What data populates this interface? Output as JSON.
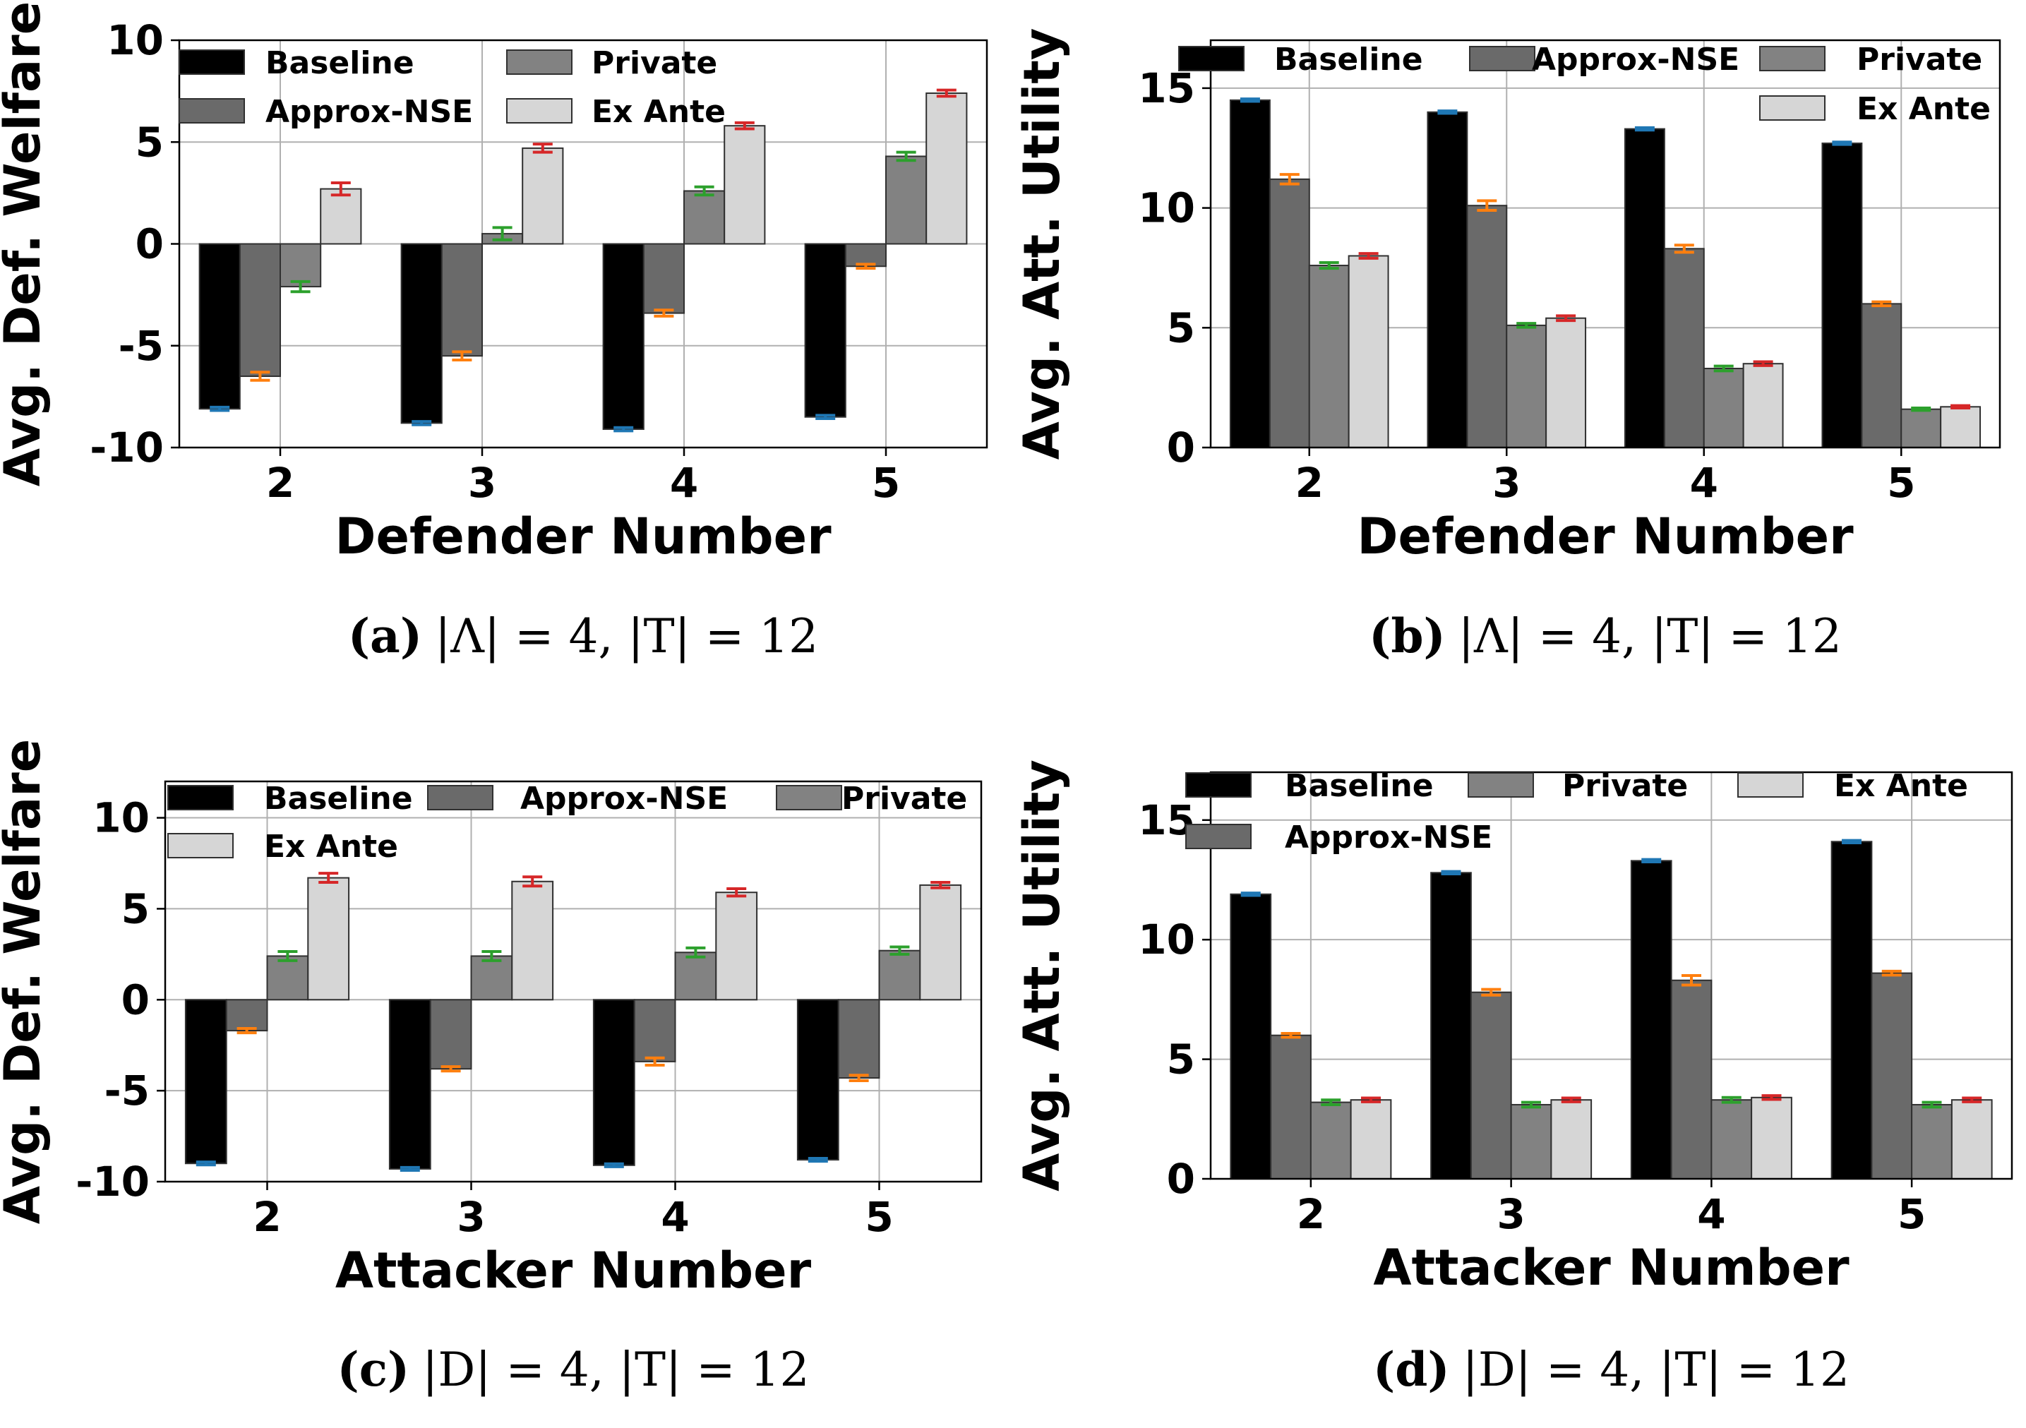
{
  "colors": {
    "baseline": "#000000",
    "approx_nse": "#6a6a6a",
    "private": "#828282",
    "ex_ante": "#d6d6d6",
    "err_baseline": "#1f77b4",
    "err_approx": "#ff7f0e",
    "err_private": "#2ca02c",
    "err_exante": "#d62728"
  },
  "chart_data": [
    {
      "id": "a",
      "type": "bar",
      "title": "",
      "caption": {
        "letter": "(a)",
        "text": "|Λ| = 4, |T| = 12"
      },
      "xlabel": "Defender Number",
      "ylabel": "Avg. Def. Welfare",
      "categories": [
        "2",
        "3",
        "4",
        "5"
      ],
      "ylim": [
        -10,
        10
      ],
      "yticks": [
        -10,
        -5,
        0,
        5,
        10
      ],
      "ytick_labels": [
        "-10",
        "-5",
        "0",
        "5",
        "10"
      ],
      "grid": true,
      "legend_placement": "top",
      "legend_columns": 2,
      "series": [
        {
          "name": "Baseline",
          "key": "baseline",
          "values": [
            -8.1,
            -8.8,
            -9.1,
            -8.5
          ],
          "err": [
            0.08,
            0.08,
            0.08,
            0.08
          ]
        },
        {
          "name": "Approx-NSE",
          "key": "approx_nse",
          "values": [
            -6.5,
            -5.5,
            -3.4,
            -1.1
          ],
          "err": [
            0.2,
            0.2,
            0.15,
            0.1
          ]
        },
        {
          "name": "Private",
          "key": "private",
          "values": [
            -2.1,
            0.5,
            2.6,
            4.3
          ],
          "err": [
            0.25,
            0.3,
            0.2,
            0.2
          ]
        },
        {
          "name": "Ex Ante",
          "key": "ex_ante",
          "values": [
            2.7,
            4.7,
            5.8,
            7.4
          ],
          "err": [
            0.3,
            0.2,
            0.15,
            0.15
          ]
        }
      ]
    },
    {
      "id": "b",
      "type": "bar",
      "title": "",
      "caption": {
        "letter": "(b)",
        "text": "|Λ| = 4, |T| = 12"
      },
      "xlabel": "Defender Number",
      "ylabel": "Avg. Att. Utility",
      "categories": [
        "2",
        "3",
        "4",
        "5"
      ],
      "ylim": [
        0,
        17
      ],
      "yticks": [
        0,
        5,
        10,
        15
      ],
      "ytick_labels": [
        "0",
        "5",
        "10",
        "15"
      ],
      "grid": true,
      "legend_placement": "top",
      "legend_columns": 3,
      "series": [
        {
          "name": "Baseline",
          "key": "baseline",
          "values": [
            14.5,
            14.0,
            13.3,
            12.7
          ],
          "err": [
            0.05,
            0.05,
            0.05,
            0.05
          ]
        },
        {
          "name": "Approx-NSE",
          "key": "approx_nse",
          "values": [
            11.2,
            10.1,
            8.3,
            6.0
          ],
          "err": [
            0.2,
            0.2,
            0.15,
            0.08
          ]
        },
        {
          "name": "Private",
          "key": "private",
          "values": [
            7.6,
            5.1,
            3.3,
            1.6
          ],
          "err": [
            0.12,
            0.08,
            0.1,
            0.05
          ]
        },
        {
          "name": "Ex Ante",
          "key": "ex_ante",
          "values": [
            8.0,
            5.4,
            3.5,
            1.7
          ],
          "err": [
            0.1,
            0.1,
            0.08,
            0.05
          ]
        }
      ]
    },
    {
      "id": "c",
      "type": "bar",
      "title": "",
      "caption": {
        "letter": "(c)",
        "text": "|D| = 4, |T| = 12"
      },
      "xlabel": "Attacker Number",
      "ylabel": "Avg. Def. Welfare",
      "categories": [
        "2",
        "3",
        "4",
        "5"
      ],
      "ylim": [
        -10,
        12
      ],
      "yticks": [
        -10,
        -5,
        0,
        5,
        10
      ],
      "ytick_labels": [
        "-10",
        "-5",
        "0",
        "5",
        "10"
      ],
      "grid": true,
      "legend_placement": "top",
      "legend_columns": 3,
      "series": [
        {
          "name": "Baseline",
          "key": "baseline",
          "values": [
            -9.0,
            -9.3,
            -9.1,
            -8.8
          ],
          "err": [
            0.08,
            0.08,
            0.08,
            0.08
          ]
        },
        {
          "name": "Approx-NSE",
          "key": "approx_nse",
          "values": [
            -1.7,
            -3.8,
            -3.4,
            -4.3
          ],
          "err": [
            0.12,
            0.12,
            0.2,
            0.15
          ]
        },
        {
          "name": "Private",
          "key": "private",
          "values": [
            2.4,
            2.4,
            2.6,
            2.7
          ],
          "err": [
            0.25,
            0.25,
            0.25,
            0.2
          ]
        },
        {
          "name": "Ex Ante",
          "key": "ex_ante",
          "values": [
            6.7,
            6.5,
            5.9,
            6.3
          ],
          "err": [
            0.25,
            0.25,
            0.2,
            0.15
          ]
        }
      ]
    },
    {
      "id": "d",
      "type": "bar",
      "title": "",
      "caption": {
        "letter": "(d)",
        "text": "|D| = 4, |T| = 12"
      },
      "xlabel": "Attacker Number",
      "ylabel": "Avg. Att. Utility",
      "categories": [
        "2",
        "3",
        "4",
        "5"
      ],
      "ylim": [
        0,
        17
      ],
      "yticks": [
        0,
        5,
        10,
        15
      ],
      "ytick_labels": [
        "0",
        "5",
        "10",
        "15"
      ],
      "grid": true,
      "legend_placement": "top",
      "legend_columns": 3,
      "legend_order": [
        "baseline",
        "private",
        "ex_ante",
        "approx_nse"
      ],
      "series": [
        {
          "name": "Baseline",
          "key": "baseline",
          "values": [
            11.9,
            12.8,
            13.3,
            14.1
          ],
          "err": [
            0.05,
            0.05,
            0.05,
            0.05
          ]
        },
        {
          "name": "Approx-NSE",
          "key": "approx_nse",
          "values": [
            6.0,
            7.8,
            8.3,
            8.6
          ],
          "err": [
            0.08,
            0.12,
            0.2,
            0.08
          ]
        },
        {
          "name": "Private",
          "key": "private",
          "values": [
            3.2,
            3.1,
            3.3,
            3.1
          ],
          "err": [
            0.1,
            0.1,
            0.1,
            0.1
          ]
        },
        {
          "name": "Ex Ante",
          "key": "ex_ante",
          "values": [
            3.3,
            3.3,
            3.4,
            3.3
          ],
          "err": [
            0.08,
            0.08,
            0.08,
            0.08
          ]
        }
      ]
    }
  ]
}
